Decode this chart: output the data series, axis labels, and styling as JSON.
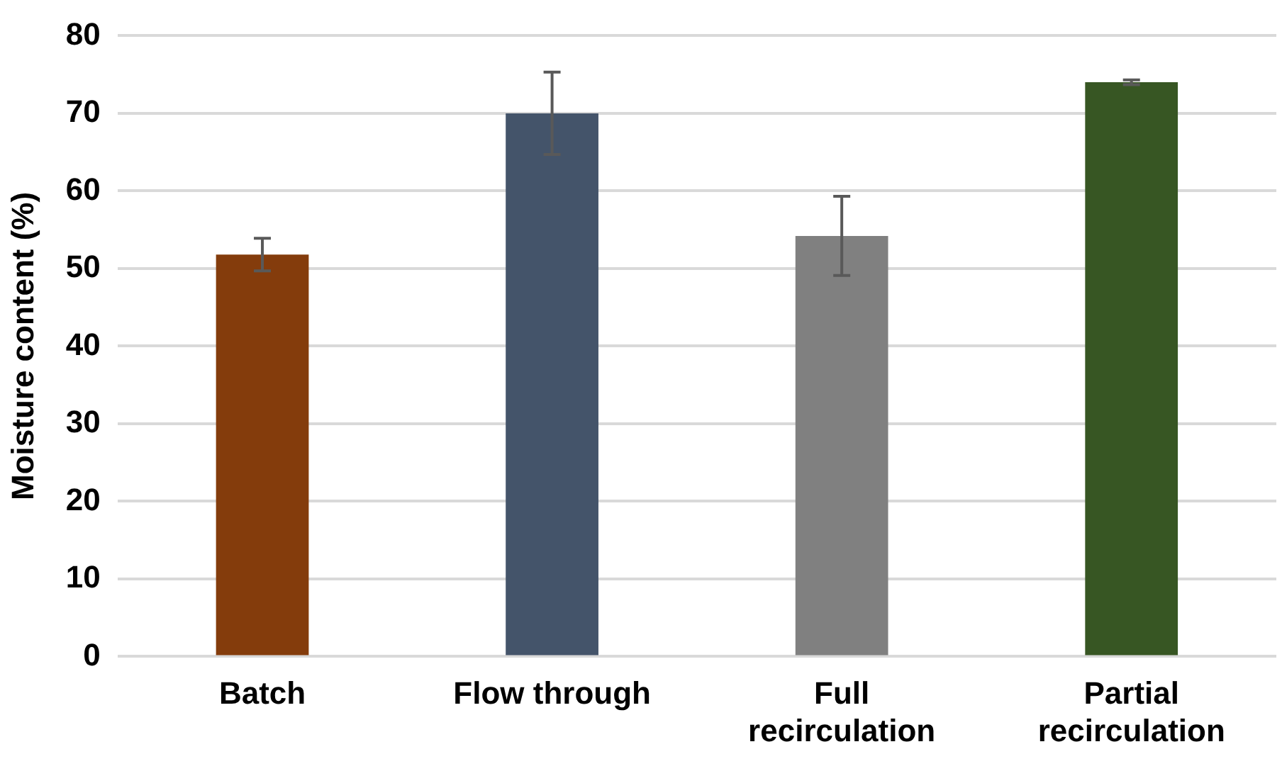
{
  "chart_data": {
    "type": "bar",
    "ylabel": "Moisture content (%)",
    "categories": [
      "Batch",
      "Flow through",
      "Full\nrecirculation",
      "Partial\nrecirculation"
    ],
    "values": [
      51.8,
      70,
      54.2,
      74
    ],
    "colors": [
      "#843c0c",
      "#44546a",
      "#808080",
      "#375623"
    ],
    "errors": [
      2.1,
      5.3,
      5.1,
      0.3
    ],
    "ylim": [
      0,
      80
    ],
    "yticks": [
      0,
      10,
      20,
      30,
      40,
      50,
      60,
      70,
      80
    ],
    "grid": "y",
    "legend": false
  }
}
